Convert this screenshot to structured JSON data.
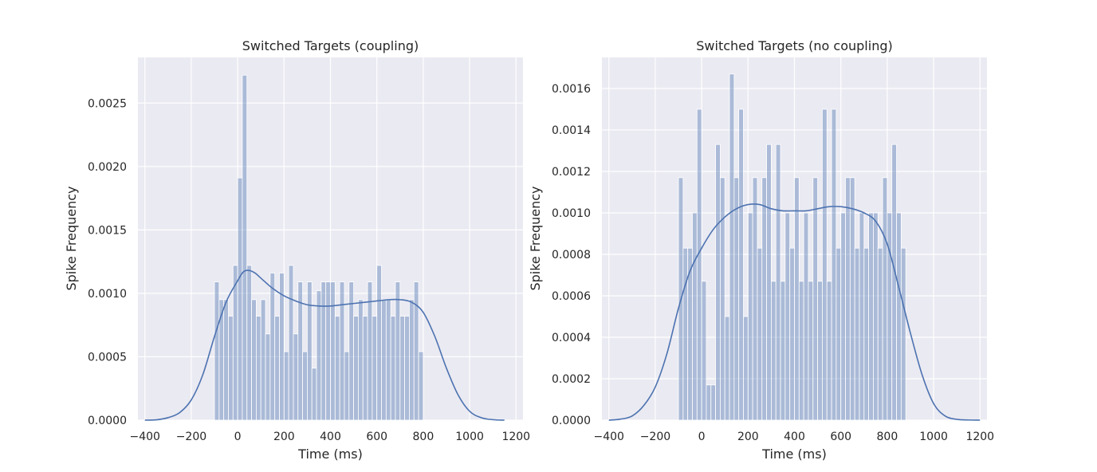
{
  "chart_data": [
    {
      "type": "bar",
      "title": "Switched Targets (coupling)",
      "xlabel": "Time (ms)",
      "ylabel": "Spike Frequency",
      "xlim": [
        -430,
        1230
      ],
      "ylim": [
        0,
        0.00286
      ],
      "xticks": [
        -400,
        -200,
        0,
        200,
        400,
        600,
        800,
        1000,
        1200
      ],
      "xtick_labels": [
        "−400",
        "−200",
        "0",
        "200",
        "400",
        "600",
        "800",
        "1000",
        "1200"
      ],
      "yticks": [
        0,
        0.0005,
        0.001,
        0.0015,
        0.002,
        0.0025
      ],
      "ytick_labels": [
        "0.0000",
        "0.0005",
        "0.0010",
        "0.0015",
        "0.0020",
        "0.0025"
      ],
      "grid": true,
      "bin_start": -100,
      "bin_width": 20,
      "values": [
        0.00109,
        0.00095,
        0.00095,
        0.00082,
        0.00122,
        0.00191,
        0.00272,
        0.00122,
        0.00095,
        0.00082,
        0.00095,
        0.00068,
        0.00116,
        0.00082,
        0.00116,
        0.00054,
        0.00122,
        0.00068,
        0.00109,
        0.00054,
        0.00109,
        0.00041,
        0.00102,
        0.00109,
        0.00109,
        0.00109,
        0.00082,
        0.00109,
        0.00054,
        0.00109,
        0.00082,
        0.00095,
        0.00082,
        0.00109,
        0.00082,
        0.00122,
        0.00095,
        0.00095,
        0.00082,
        0.00109,
        0.00082,
        0.00082,
        0.00095,
        0.00109,
        0.00054
      ],
      "kde": {
        "x": [
          -400,
          -350,
          -300,
          -250,
          -200,
          -150,
          -100,
          -50,
          0,
          25,
          50,
          75,
          100,
          150,
          200,
          250,
          300,
          350,
          400,
          450,
          500,
          550,
          600,
          650,
          700,
          750,
          800,
          850,
          900,
          950,
          1000,
          1050,
          1100,
          1150
        ],
        "y": [
          0,
          3e-06,
          2e-05,
          6e-05,
          0.00016,
          0.00036,
          0.00066,
          0.00093,
          0.0011,
          0.00117,
          0.00118,
          0.00116,
          0.00112,
          0.00104,
          0.00098,
          0.00094,
          0.00091,
          0.0009,
          0.0009,
          0.00091,
          0.00092,
          0.00093,
          0.00094,
          0.00095,
          0.00095,
          0.00093,
          0.00085,
          0.00066,
          0.00041,
          0.0002,
          7e-05,
          2e-05,
          4e-06,
          0
        ]
      }
    },
    {
      "type": "bar",
      "title": "Switched Targets (no coupling)",
      "xlabel": "Time (ms)",
      "ylabel": "Spike Frequency",
      "xlim": [
        -430,
        1230
      ],
      "ylim": [
        0,
        0.00175
      ],
      "xticks": [
        -400,
        -200,
        0,
        200,
        400,
        600,
        800,
        1000,
        1200
      ],
      "xtick_labels": [
        "−400",
        "−200",
        "0",
        "200",
        "400",
        "600",
        "800",
        "1000",
        "1200"
      ],
      "yticks": [
        0,
        0.0002,
        0.0004,
        0.0006,
        0.0008,
        0.001,
        0.0012,
        0.0014,
        0.0016
      ],
      "ytick_labels": [
        "0.0000",
        "0.0002",
        "0.0004",
        "0.0006",
        "0.0008",
        "0.0010",
        "0.0012",
        "0.0014",
        "0.0016"
      ],
      "grid": true,
      "bin_start": -100,
      "bin_width": 20,
      "values": [
        0.00117,
        0.00083,
        0.00083,
        0.001,
        0.0015,
        0.00067,
        0.00017,
        0.00017,
        0.00133,
        0.00117,
        0.0005,
        0.00167,
        0.00117,
        0.0015,
        0.0005,
        0.001,
        0.00117,
        0.00083,
        0.00117,
        0.00133,
        0.00067,
        0.00133,
        0.00067,
        0.001,
        0.00083,
        0.00117,
        0.00067,
        0.001,
        0.00067,
        0.00117,
        0.00067,
        0.0015,
        0.00067,
        0.0015,
        0.00083,
        0.001,
        0.00117,
        0.00117,
        0.00083,
        0.001,
        0.00083,
        0.001,
        0.001,
        0.00083,
        0.00117,
        0.001,
        0.00133,
        0.001,
        0.00083
      ],
      "kde": {
        "x": [
          -400,
          -350,
          -300,
          -250,
          -200,
          -150,
          -100,
          -50,
          0,
          50,
          100,
          150,
          200,
          250,
          300,
          350,
          400,
          450,
          500,
          550,
          600,
          650,
          700,
          750,
          800,
          850,
          900,
          950,
          1000,
          1050,
          1100,
          1150,
          1200
        ],
        "y": [
          0,
          5e-06,
          2e-05,
          7e-05,
          0.00016,
          0.00032,
          0.00054,
          0.00072,
          0.00083,
          0.00092,
          0.00098,
          0.00102,
          0.00104,
          0.00104,
          0.00102,
          0.00101,
          0.00101,
          0.00101,
          0.00102,
          0.00103,
          0.00103,
          0.00102,
          0.001,
          0.00096,
          0.00085,
          0.00064,
          0.00042,
          0.00022,
          8e-05,
          2e-05,
          4e-06,
          1e-06,
          0
        ]
      }
    }
  ],
  "colors": {
    "background": "#eaeaf2",
    "grid": "#ffffff",
    "bar": "#4c72b0",
    "kde": "#4c72b0",
    "text": "#262626"
  }
}
